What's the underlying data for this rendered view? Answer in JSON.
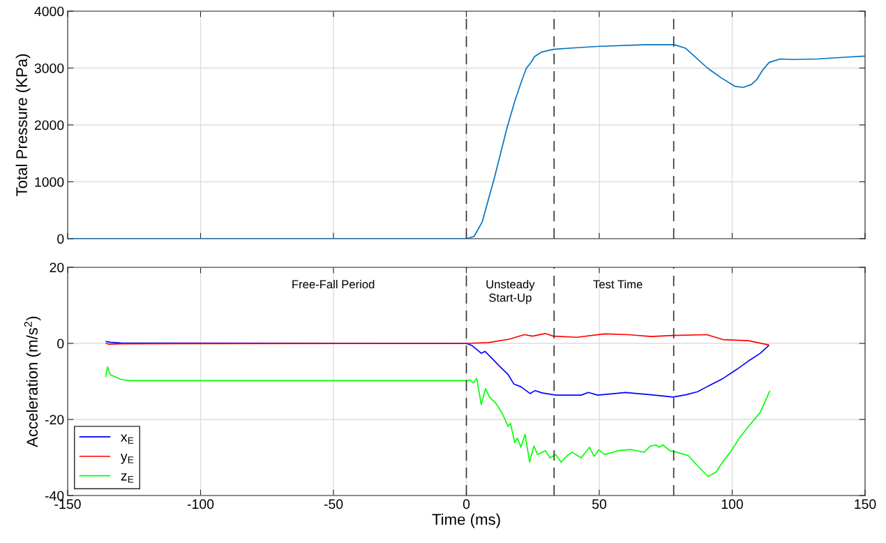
{
  "chart_data": [
    {
      "type": "line",
      "ylabel": "Total Pressure (KPa)",
      "xlim": [
        -150,
        150
      ],
      "xticks": [
        -150,
        -100,
        -50,
        0,
        50,
        100,
        150
      ],
      "ylim": [
        0,
        4000
      ],
      "yticks": [
        0,
        1000,
        2000,
        3000,
        4000
      ],
      "grid": true,
      "tick_labels": "y",
      "series": [
        {
          "color": "#0072bd",
          "x": [
            -150,
            -100,
            -50,
            0,
            2.9,
            6.0,
            8.0,
            10.6,
            12.7,
            15.3,
            18.3,
            20.4,
            22.5,
            24.5,
            25.6,
            28.2,
            32.8,
            39,
            49.3,
            66.9,
            78.3,
            82.4,
            90.7,
            95.8,
            101,
            104.1,
            107.2,
            109.3,
            111.4,
            113.9,
            118.1,
            122.7,
            132,
            142.4,
            150
          ],
          "values": [
            0,
            0,
            0,
            0,
            40,
            300,
            640,
            1080,
            1470,
            1950,
            2430,
            2720,
            2990,
            3110,
            3200,
            3280,
            3330,
            3350,
            3380,
            3410,
            3410,
            3350,
            3000,
            2830,
            2680,
            2660,
            2710,
            2800,
            2960,
            3100,
            3160,
            3150,
            3160,
            3190,
            3210
          ]
        }
      ],
      "ref_lines": [
        {
          "axis": "x",
          "value": 0,
          "color": "#333333",
          "line_style": "dashed"
        },
        {
          "axis": "x",
          "value": 33,
          "color": "#333333",
          "line_style": "dashed"
        },
        {
          "axis": "x",
          "value": 78,
          "color": "#333333",
          "line_style": "dashed"
        }
      ]
    },
    {
      "type": "line",
      "xlabel": "Time (ms)",
      "ylabel": "Acceleration (m/s$^{2}$)",
      "xlim": [
        -150,
        150
      ],
      "xticks": [
        -150,
        -100,
        -50,
        0,
        50,
        100,
        150
      ],
      "ylim": [
        -40,
        20
      ],
      "yticks": [
        -40,
        -20,
        0,
        20
      ],
      "grid": true,
      "legend": "bottom left",
      "series": [
        {
          "name": "x$_{E}$",
          "color": "#0000ff",
          "x": [
            -135.5,
            -134,
            -130,
            0,
            2.2,
            5.6,
            7,
            10,
            12.2,
            15.7,
            17.9,
            20.5,
            24,
            25.8,
            28.4,
            33.6,
            43.2,
            45.9,
            49.4,
            59.9,
            69.5,
            77.8,
            82.6,
            87,
            90.5,
            96.6,
            101.8,
            106.2,
            110.6,
            113.7
          ],
          "values": [
            0.5,
            0.3,
            0.1,
            0,
            -0.6,
            -2.6,
            -2.1,
            -4.2,
            -5.8,
            -8.2,
            -10.7,
            -11.4,
            -13.2,
            -12.4,
            -13,
            -13.6,
            -13.6,
            -12.9,
            -13.6,
            -12.9,
            -13.5,
            -14.1,
            -13.5,
            -12.7,
            -11.4,
            -9.2,
            -6.8,
            -4.6,
            -2.6,
            -0.6
          ]
        },
        {
          "name": "y$_{E}$",
          "color": "#ff0000",
          "x": [
            -135.5,
            -134.5,
            -130,
            0,
            8.3,
            16.1,
            21.8,
            24.9,
            29.7,
            32.7,
            41.5,
            52,
            60.8,
            69.5,
            77.8,
            90.5,
            96.6,
            106.2,
            113.7
          ],
          "values": [
            0,
            -0.2,
            -0.1,
            0,
            0.2,
            1.1,
            2.3,
            1.9,
            2.6,
            1.9,
            1.6,
            2.5,
            2.3,
            1.8,
            2.1,
            2.3,
            1.0,
            0.7,
            -0.4
          ]
        },
        {
          "name": "z$_{E}$",
          "color": "#00ff00",
          "x": [
            -135.7,
            -135,
            -134,
            -129.9,
            -126.6,
            -100,
            -50,
            0,
            1.3,
            2.6,
            3.9,
            5.6,
            7.2,
            8.7,
            11.3,
            13.5,
            15.7,
            16.6,
            18.2,
            19.2,
            20.5,
            22.1,
            23.8,
            25.4,
            26.8,
            29.7,
            31.5,
            33.6,
            35.6,
            38,
            39.8,
            43.2,
            46.3,
            48.1,
            49.8,
            52,
            57.3,
            61.6,
            66.9,
            69.2,
            71.3,
            72.6,
            73.9,
            76.5,
            79.1,
            83.5,
            87,
            90.9,
            94,
            96.6,
            99.3,
            102.7,
            106.2,
            110.6,
            114.1
          ],
          "values": [
            -8.7,
            -6.2,
            -8.2,
            -9.5,
            -9.8,
            -9.8,
            -9.8,
            -9.8,
            -9.6,
            -10.4,
            -9.2,
            -16.1,
            -11.9,
            -14.1,
            -15.9,
            -18.4,
            -21.8,
            -21,
            -26.1,
            -24.9,
            -27.3,
            -23.9,
            -31.2,
            -27,
            -29.2,
            -28.2,
            -30.1,
            -29.2,
            -31.2,
            -29.5,
            -28.6,
            -30.1,
            -27.3,
            -29.7,
            -28,
            -29.2,
            -28.2,
            -27.9,
            -28.6,
            -27,
            -26.7,
            -27.3,
            -26.7,
            -28.2,
            -28.6,
            -29.5,
            -32.2,
            -35,
            -33.8,
            -31,
            -28.6,
            -24.9,
            -21.8,
            -18.1,
            -12.6
          ]
        }
      ],
      "ref_lines": [
        {
          "axis": "x",
          "value": 0,
          "color": "#333333",
          "line_style": "dashed"
        },
        {
          "axis": "x",
          "value": 33,
          "color": "#333333",
          "line_style": "dashed"
        },
        {
          "axis": "x",
          "value": 78,
          "color": "#333333",
          "line_style": "dashed"
        }
      ],
      "annotations": [
        "Free-Fall Period",
        "Unsteady\nStart-Up",
        "Test Time"
      ]
    }
  ]
}
